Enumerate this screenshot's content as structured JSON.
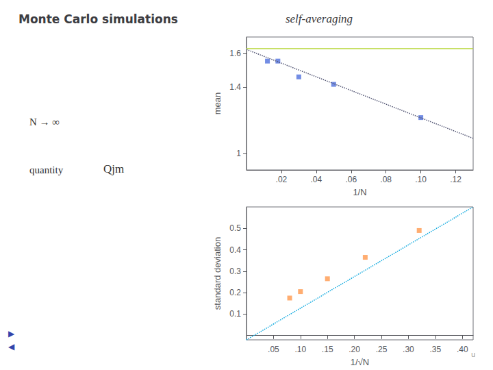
{
  "chart_data": [
    {
      "type": "scatter",
      "title": "Monte Carlo simulations",
      "subtitle": "self-averaging",
      "annotations": [
        "N → ∞",
        "quantity",
        "Qjm",
        "▶",
        "◀",
        "u"
      ],
      "xlabel": "1/N",
      "ylabel": "mean",
      "xlim": [
        0.0,
        0.13
      ],
      "ylim": [
        0.9,
        1.7
      ],
      "xticks": [
        {
          "value": 0.02,
          "label": ".02"
        },
        {
          "value": 0.04,
          "label": ".04"
        },
        {
          "value": 0.06,
          "label": ".06"
        },
        {
          "value": 0.08,
          "label": ".08"
        },
        {
          "value": 0.1,
          "label": ".10"
        },
        {
          "value": 0.12,
          "label": ".12"
        }
      ],
      "yticks": [
        1,
        1.4,
        1.6
      ],
      "grid": false,
      "series": [
        {
          "type": "scatter",
          "marker": "square",
          "x": [
            0.012,
            0.018,
            0.03,
            0.05,
            0.1
          ],
          "values": [
            1.555,
            1.555,
            1.46,
            1.415,
            1.215
          ]
        },
        {
          "type": "hline",
          "y": 1.625,
          "line_style": "solid"
        },
        {
          "type": "line",
          "line_style": "dotted",
          "x": [
            0.0,
            0.13
          ],
          "values": [
            1.625,
            1.09
          ]
        }
      ]
    },
    {
      "type": "scatter",
      "xlabel": "1/√N",
      "ylabel": "standard deviation",
      "xlim": [
        0.0,
        0.42
      ],
      "ylim": [
        -0.02,
        0.6
      ],
      "xticks": [
        {
          "value": 0.05,
          "label": ".05"
        },
        {
          "value": 0.1,
          "label": ".10"
        },
        {
          "value": 0.15,
          "label": ".15"
        },
        {
          "value": 0.2,
          "label": ".20"
        },
        {
          "value": 0.25,
          "label": ".25"
        },
        {
          "value": 0.3,
          "label": ".30"
        },
        {
          "value": 0.35,
          "label": ".35"
        },
        {
          "value": 0.4,
          "label": ".40"
        }
      ],
      "yticks": [
        0.1,
        0.2,
        0.3,
        0.4,
        0.5
      ],
      "grid": false,
      "series": [
        {
          "type": "scatter",
          "marker": "square",
          "x": [
            0.08,
            0.1,
            0.15,
            0.22,
            0.32
          ],
          "values": [
            0.175,
            0.205,
            0.265,
            0.365,
            0.49
          ]
        },
        {
          "type": "line",
          "line_style": "dotted",
          "x": [
            0.0,
            0.42
          ],
          "values": [
            -0.02,
            0.6
          ]
        }
      ]
    }
  ]
}
